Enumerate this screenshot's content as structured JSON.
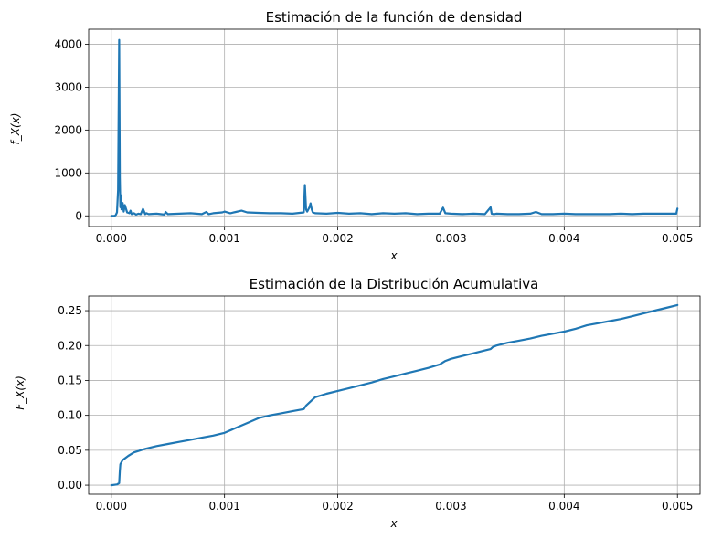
{
  "chart_data": [
    {
      "type": "line",
      "title": "Estimación de la función de densidad",
      "xlabel": "x",
      "ylabel": "f_X(x)",
      "xlim": [
        -0.0002,
        0.0052
      ],
      "ylim": [
        -250,
        4350
      ],
      "xticks": [
        0,
        0.001,
        0.002,
        0.003,
        0.004,
        0.005
      ],
      "xtick_labels": [
        "0.000",
        "0.001",
        "0.002",
        "0.003",
        "0.004",
        "0.005"
      ],
      "yticks": [
        0,
        1000,
        2000,
        3000,
        4000
      ],
      "ytick_labels": [
        "0",
        "1000",
        "2000",
        "3000",
        "4000"
      ],
      "grid": true,
      "color": "#1f77b4",
      "series": [
        {
          "x": [
            0,
            3e-05,
            4e-05,
            5e-05,
            6e-05,
            7e-05,
            7.5e-05,
            8e-05,
            8.5e-05,
            9e-05,
            0.0001,
            0.00011,
            0.00012,
            0.00014,
            0.00016,
            0.00017,
            0.00018,
            0.0002,
            0.00022,
            0.00024,
            0.00026,
            0.00028,
            0.0003,
            0.00031,
            0.00033,
            0.0004,
            0.00047,
            0.00048,
            0.0005,
            0.0006,
            0.0007,
            0.0008,
            0.00084,
            0.00086,
            0.0009,
            0.00098,
            0.001,
            0.00105,
            0.0011,
            0.00115,
            0.0012,
            0.0013,
            0.0014,
            0.0015,
            0.0016,
            0.0017,
            0.00171,
            0.00172,
            0.00173,
            0.00175,
            0.00176,
            0.00177,
            0.00178,
            0.0018,
            0.0019,
            0.002,
            0.0021,
            0.0022,
            0.0023,
            0.0024,
            0.0025,
            0.0026,
            0.0027,
            0.0028,
            0.0029,
            0.00293,
            0.00295,
            0.003,
            0.0031,
            0.0032,
            0.0033,
            0.00335,
            0.00336,
            0.00338,
            0.0034,
            0.0035,
            0.0036,
            0.0037,
            0.00375,
            0.0038,
            0.0039,
            0.004,
            0.0041,
            0.0042,
            0.0043,
            0.0044,
            0.0045,
            0.0046,
            0.0047,
            0.0048,
            0.0049,
            0.00499,
            0.005
          ],
          "y": [
            0,
            0,
            20,
            80,
            600,
            4100,
            900,
            200,
            480,
            150,
            300,
            100,
            250,
            80,
            60,
            120,
            40,
            60,
            30,
            50,
            40,
            160,
            40,
            60,
            40,
            50,
            30,
            90,
            40,
            50,
            60,
            40,
            90,
            40,
            60,
            80,
            100,
            60,
            90,
            120,
            80,
            70,
            60,
            60,
            50,
            80,
            720,
            150,
            100,
            200,
            290,
            150,
            80,
            60,
            50,
            70,
            50,
            60,
            40,
            60,
            50,
            60,
            40,
            50,
            50,
            190,
            60,
            50,
            40,
            50,
            40,
            200,
            50,
            40,
            50,
            40,
            40,
            50,
            90,
            40,
            40,
            50,
            40,
            40,
            40,
            40,
            50,
            40,
            50,
            50,
            50,
            50,
            170
          ]
        }
      ]
    },
    {
      "type": "line",
      "title": "Estimación de la Distribución Acumulativa",
      "xlabel": "x",
      "ylabel": "F_X(x)",
      "xlim": [
        -0.0002,
        0.0052
      ],
      "ylim": [
        -0.013,
        0.271
      ],
      "xticks": [
        0,
        0.001,
        0.002,
        0.003,
        0.004,
        0.005
      ],
      "xtick_labels": [
        "0.000",
        "0.001",
        "0.002",
        "0.003",
        "0.004",
        "0.005"
      ],
      "yticks": [
        0,
        0.05,
        0.1,
        0.15,
        0.2,
        0.25
      ],
      "ytick_labels": [
        "0.00",
        "0.05",
        "0.10",
        "0.15",
        "0.20",
        "0.25"
      ],
      "grid": true,
      "color": "#1f77b4",
      "series": [
        {
          "x": [
            0,
            5e-05,
            7e-05,
            7.5e-05,
            8e-05,
            0.0001,
            0.00015,
            0.0002,
            0.0003,
            0.0004,
            0.0005,
            0.0006,
            0.0007,
            0.0008,
            0.0009,
            0.001,
            0.0011,
            0.0012,
            0.0013,
            0.0014,
            0.0015,
            0.0016,
            0.0017,
            0.00172,
            0.00176,
            0.0018,
            0.0019,
            0.002,
            0.0021,
            0.0022,
            0.0023,
            0.0024,
            0.0025,
            0.0026,
            0.0027,
            0.0028,
            0.0029,
            0.00295,
            0.003,
            0.0031,
            0.0032,
            0.0033,
            0.00335,
            0.00337,
            0.0034,
            0.0035,
            0.0036,
            0.0037,
            0.0038,
            0.0039,
            0.004,
            0.0041,
            0.0042,
            0.0043,
            0.0044,
            0.0045,
            0.0046,
            0.0047,
            0.0048,
            0.0049,
            0.005
          ],
          "y": [
            0,
            0.001,
            0.003,
            0.02,
            0.03,
            0.036,
            0.042,
            0.047,
            0.052,
            0.056,
            0.059,
            0.062,
            0.065,
            0.068,
            0.071,
            0.075,
            0.082,
            0.089,
            0.096,
            0.1,
            0.103,
            0.106,
            0.109,
            0.114,
            0.12,
            0.126,
            0.131,
            0.135,
            0.139,
            0.143,
            0.147,
            0.152,
            0.156,
            0.16,
            0.164,
            0.168,
            0.173,
            0.178,
            0.181,
            0.185,
            0.189,
            0.193,
            0.195,
            0.198,
            0.2,
            0.204,
            0.207,
            0.21,
            0.214,
            0.217,
            0.22,
            0.224,
            0.229,
            0.232,
            0.235,
            0.238,
            0.242,
            0.246,
            0.25,
            0.254,
            0.258
          ]
        }
      ]
    }
  ]
}
